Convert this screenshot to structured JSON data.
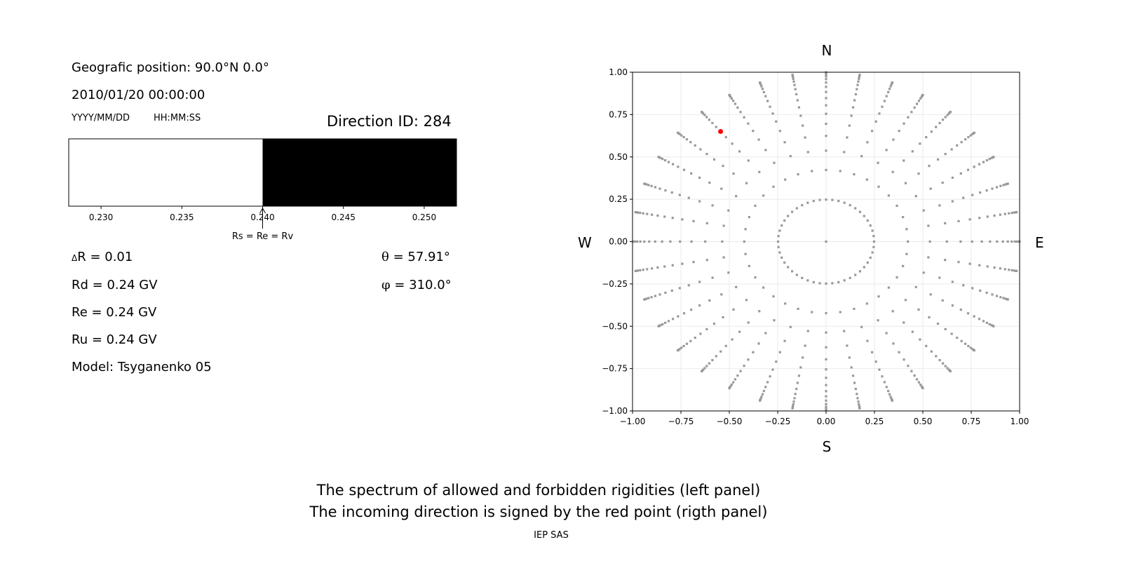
{
  "left_panel": {
    "position_text": "Geografic position: 90.0°N 0.0°",
    "datetime": "2010/01/20 00:00:00",
    "date_format": "YYYY/MM/DD",
    "time_format": "HH:MM:SS",
    "direction_id": "Direction ID: 284",
    "delta_r_symbol": "Δ",
    "delta_r": "R = 0.01",
    "rd": "Rd = 0.24 GV",
    "re": "Re = 0.24 GV",
    "ru": "Ru = 0.24 GV",
    "model": "Model: Tsyganenko 05",
    "theta_symbol": "θ",
    "theta": "= 57.91°",
    "phi_symbol": "φ",
    "phi": "= 310.0°"
  },
  "chart_data": [
    {
      "type": "bar",
      "xlim": [
        0.228,
        0.252
      ],
      "ticks": [
        "0.230",
        "0.235",
        "0.240",
        "0.245",
        "0.250"
      ],
      "tick_values": [
        0.23,
        0.235,
        0.24,
        0.245,
        0.25
      ],
      "segments": [
        {
          "from": 0.228,
          "to": 0.24,
          "state": "allowed",
          "color": "#ffffff"
        },
        {
          "from": 0.24,
          "to": 0.252,
          "state": "forbidden",
          "color": "#000000"
        }
      ],
      "annotation": {
        "text": "Rs = Re = Rv",
        "x": 0.24
      }
    },
    {
      "type": "scatter",
      "xlim": [
        -1,
        1
      ],
      "ylim": [
        -1,
        1
      ],
      "grid": true,
      "ticks": [
        "−1.00",
        "−0.75",
        "−0.50",
        "−0.25",
        "0.00",
        "0.25",
        "0.50",
        "0.75",
        "1.00"
      ],
      "tick_values": [
        -1,
        -0.75,
        -0.5,
        -0.25,
        0,
        0.25,
        0.5,
        0.75,
        1
      ],
      "compass": {
        "n": "N",
        "s": "S",
        "e": "E",
        "w": "W"
      },
      "grid_points": {
        "color": "#999999",
        "ring_count": 16,
        "azimuth_step_deg": 10,
        "inner_ring_points": 48,
        "center": [
          0,
          0
        ]
      },
      "selected_point": {
        "x": -0.545,
        "y": 0.65,
        "color": "#ff0000"
      }
    }
  ],
  "caption": {
    "line1": "The spectrum of allowed and forbidden rigidities (left panel)",
    "line2": "The incoming direction is signed by the red point (rigth panel)",
    "credit": "IEP SAS"
  }
}
